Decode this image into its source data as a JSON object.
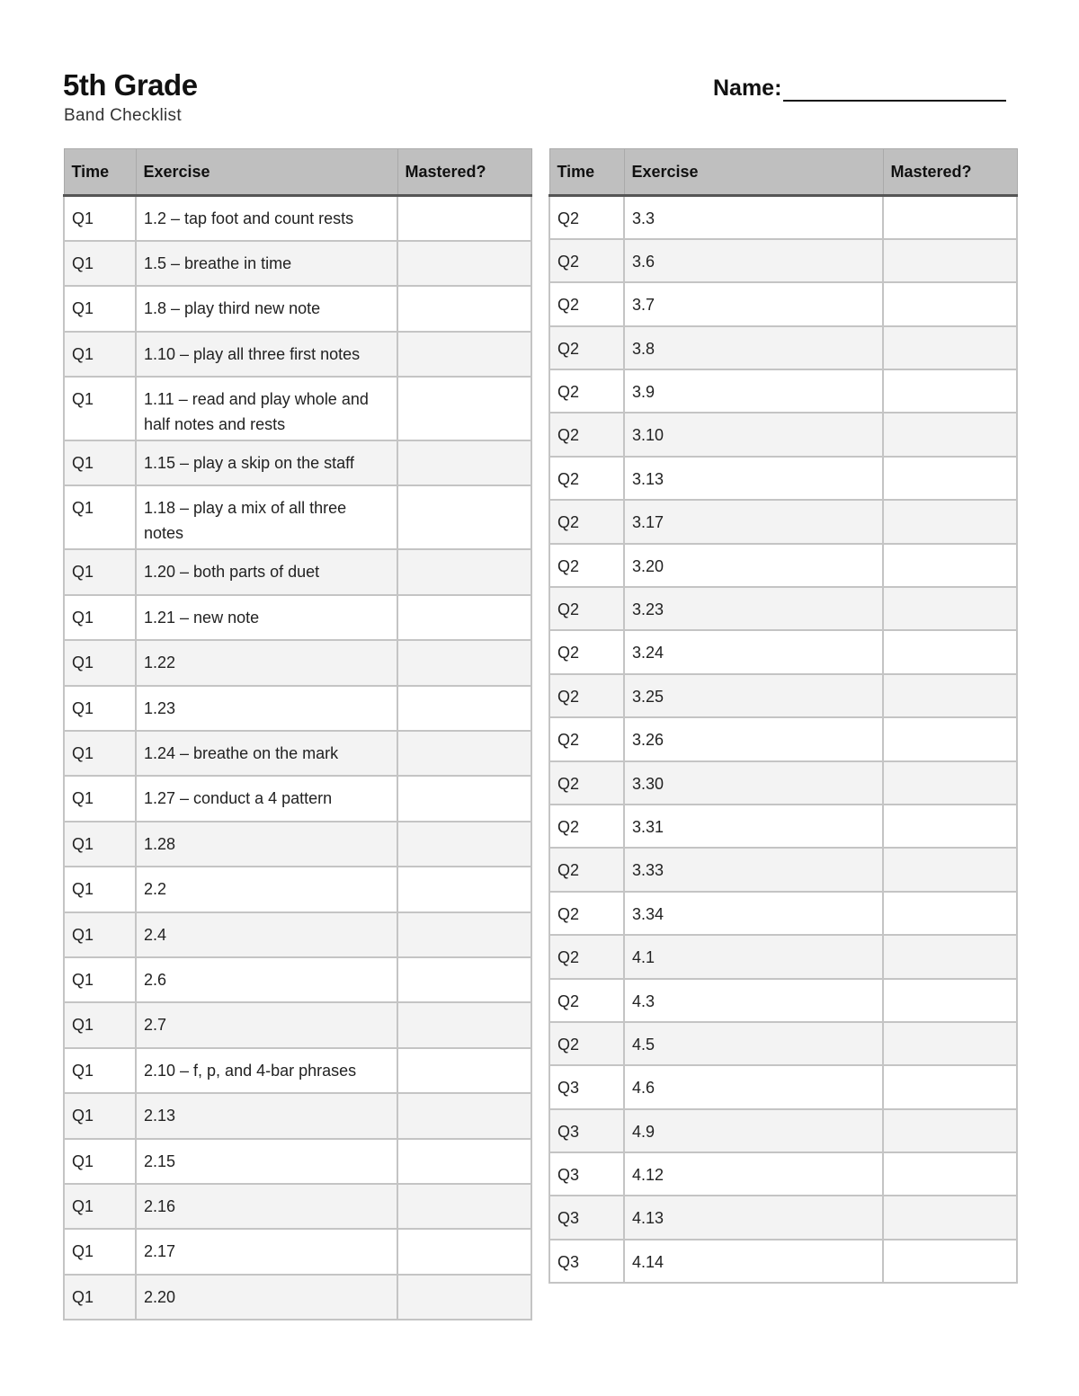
{
  "header": {
    "title": "5th Grade",
    "subtitle": "Band Checklist",
    "name_label": "Name:"
  },
  "columns": [
    "Time",
    "Exercise",
    "Mastered?"
  ],
  "left_rows": [
    {
      "time": "Q1",
      "exercise": "1.2 – tap foot and count rests",
      "mastered": ""
    },
    {
      "time": "Q1",
      "exercise": "1.5 – breathe in time",
      "mastered": ""
    },
    {
      "time": "Q1",
      "exercise": "1.8 – play third new note",
      "mastered": ""
    },
    {
      "time": "Q1",
      "exercise": "1.10 – play all three first notes",
      "mastered": ""
    },
    {
      "time": "Q1",
      "exercise": "1.11 – read and play whole and half notes and rests",
      "mastered": ""
    },
    {
      "time": "Q1",
      "exercise": "1.15 – play a skip on the staff",
      "mastered": ""
    },
    {
      "time": "Q1",
      "exercise": "1.18 – play a mix of all three notes",
      "mastered": ""
    },
    {
      "time": "Q1",
      "exercise": "1.20 – both parts of duet",
      "mastered": ""
    },
    {
      "time": "Q1",
      "exercise": "1.21 – new note",
      "mastered": ""
    },
    {
      "time": "Q1",
      "exercise": "1.22",
      "mastered": ""
    },
    {
      "time": "Q1",
      "exercise": "1.23",
      "mastered": ""
    },
    {
      "time": "Q1",
      "exercise": "1.24 – breathe on the mark",
      "mastered": ""
    },
    {
      "time": "Q1",
      "exercise": "1.27 – conduct a 4 pattern",
      "mastered": ""
    },
    {
      "time": "Q1",
      "exercise": "1.28",
      "mastered": ""
    },
    {
      "time": "Q1",
      "exercise": "2.2",
      "mastered": ""
    },
    {
      "time": "Q1",
      "exercise": "2.4",
      "mastered": ""
    },
    {
      "time": "Q1",
      "exercise": "2.6",
      "mastered": ""
    },
    {
      "time": "Q1",
      "exercise": "2.7",
      "mastered": ""
    },
    {
      "time": "Q1",
      "exercise": "2.10 – f, p, and 4-bar phrases",
      "mastered": ""
    },
    {
      "time": "Q1",
      "exercise": "2.13",
      "mastered": ""
    },
    {
      "time": "Q1",
      "exercise": "2.15",
      "mastered": ""
    },
    {
      "time": "Q1",
      "exercise": "2.16",
      "mastered": ""
    },
    {
      "time": "Q1",
      "exercise": "2.17",
      "mastered": ""
    },
    {
      "time": "Q1",
      "exercise": "2.20",
      "mastered": ""
    }
  ],
  "right_rows": [
    {
      "time": "Q2",
      "exercise": "3.3",
      "mastered": ""
    },
    {
      "time": "Q2",
      "exercise": "3.6",
      "mastered": ""
    },
    {
      "time": "Q2",
      "exercise": "3.7",
      "mastered": ""
    },
    {
      "time": "Q2",
      "exercise": "3.8",
      "mastered": ""
    },
    {
      "time": "Q2",
      "exercise": "3.9",
      "mastered": ""
    },
    {
      "time": "Q2",
      "exercise": "3.10",
      "mastered": ""
    },
    {
      "time": "Q2",
      "exercise": "3.13",
      "mastered": ""
    },
    {
      "time": "Q2",
      "exercise": "3.17",
      "mastered": ""
    },
    {
      "time": "Q2",
      "exercise": "3.20",
      "mastered": ""
    },
    {
      "time": "Q2",
      "exercise": "3.23",
      "mastered": ""
    },
    {
      "time": "Q2",
      "exercise": "3.24",
      "mastered": ""
    },
    {
      "time": "Q2",
      "exercise": "3.25",
      "mastered": ""
    },
    {
      "time": "Q2",
      "exercise": "3.26",
      "mastered": ""
    },
    {
      "time": "Q2",
      "exercise": "3.30",
      "mastered": ""
    },
    {
      "time": "Q2",
      "exercise": "3.31",
      "mastered": ""
    },
    {
      "time": "Q2",
      "exercise": "3.33",
      "mastered": ""
    },
    {
      "time": "Q2",
      "exercise": "3.34",
      "mastered": ""
    },
    {
      "time": "Q2",
      "exercise": "4.1",
      "mastered": ""
    },
    {
      "time": "Q2",
      "exercise": "4.3",
      "mastered": ""
    },
    {
      "time": "Q2",
      "exercise": "4.5",
      "mastered": ""
    },
    {
      "time": "Q3",
      "exercise": "4.6",
      "mastered": ""
    },
    {
      "time": "Q3",
      "exercise": "4.9",
      "mastered": ""
    },
    {
      "time": "Q3",
      "exercise": "4.12",
      "mastered": ""
    },
    {
      "time": "Q3",
      "exercise": "4.13",
      "mastered": ""
    },
    {
      "time": "Q3",
      "exercise": "4.14",
      "mastered": ""
    }
  ],
  "colors": {
    "header_bg": "#bfbfbf",
    "stripe_bg": "#f3f3f3",
    "grid": "#c4c4c4"
  }
}
